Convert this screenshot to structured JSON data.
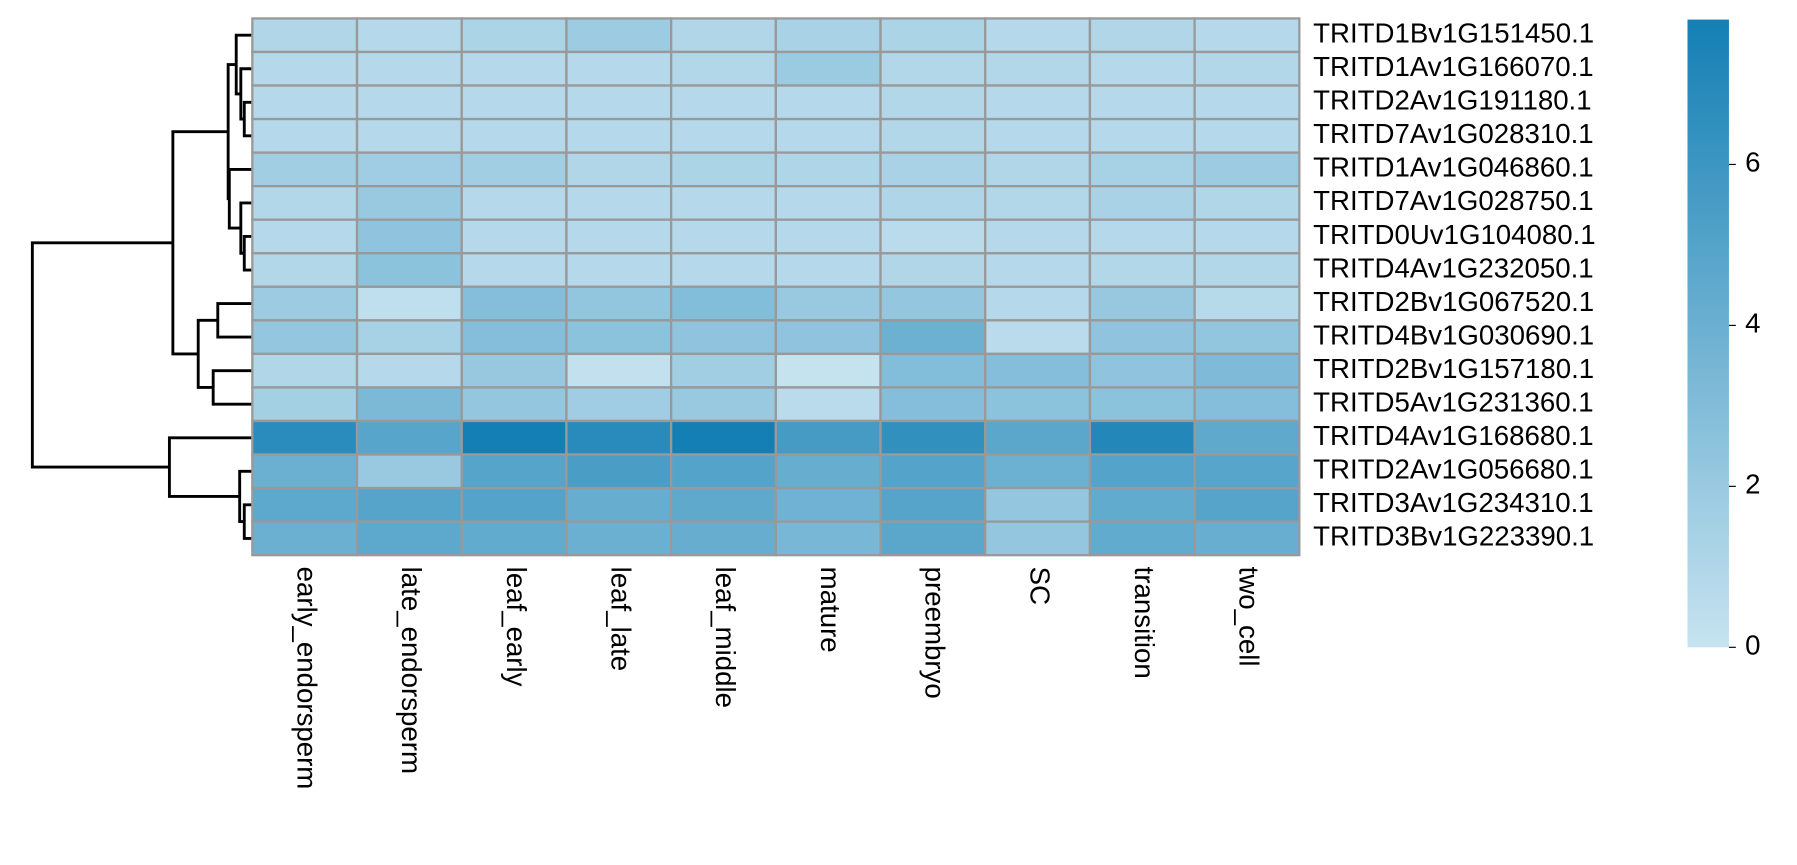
{
  "chart_data": {
    "type": "heatmap",
    "categories": [
      "early_endorsperm",
      "late_endorsperm",
      "leaf_early",
      "leaf_late",
      "leaf_middle",
      "mature",
      "preembryo",
      "SC",
      "transition",
      "two_cell"
    ],
    "rows": [
      "TRITD1Bv1G151450.1",
      "TRITD1Av1G166070.1",
      "TRITD2Av1G191180.1",
      "TRITD7Av1G028310.1",
      "TRITD1Av1G046860.1",
      "TRITD7Av1G028750.1",
      "TRITD0Uv1G104080.1",
      "TRITD4Av1G232050.1",
      "TRITD2Bv1G067520.1",
      "TRITD4Bv1G030690.1",
      "TRITD2Bv1G157180.1",
      "TRITD5Av1G231360.1",
      "TRITD4Av1G168680.1",
      "TRITD2Av1G056680.1",
      "TRITD3Av1G234310.1",
      "TRITD3Bv1G223390.1"
    ],
    "values": [
      [
        1.0,
        0.8,
        1.2,
        1.8,
        1.0,
        1.3,
        1.2,
        0.8,
        1.0,
        0.8
      ],
      [
        0.8,
        0.8,
        0.8,
        0.8,
        0.9,
        1.9,
        0.9,
        0.9,
        0.8,
        0.9
      ],
      [
        0.8,
        0.8,
        0.8,
        0.8,
        0.8,
        0.8,
        0.9,
        0.8,
        0.8,
        0.8
      ],
      [
        0.8,
        0.8,
        0.8,
        0.8,
        0.8,
        0.8,
        0.9,
        0.8,
        0.8,
        0.8
      ],
      [
        1.6,
        1.7,
        1.6,
        1.0,
        1.2,
        1.1,
        1.3,
        1.0,
        1.4,
        1.8
      ],
      [
        0.9,
        2.0,
        0.8,
        0.8,
        0.8,
        0.8,
        1.1,
        0.9,
        1.3,
        1.0
      ],
      [
        0.8,
        2.4,
        0.8,
        0.8,
        0.8,
        0.8,
        0.6,
        0.8,
        0.8,
        0.8
      ],
      [
        0.9,
        2.6,
        0.8,
        0.8,
        0.8,
        0.8,
        1.0,
        0.8,
        0.9,
        0.9
      ],
      [
        1.8,
        0.3,
        2.9,
        2.3,
        3.0,
        2.0,
        2.2,
        0.8,
        2.1,
        0.7
      ],
      [
        2.2,
        1.4,
        2.9,
        2.6,
        2.4,
        2.4,
        3.9,
        0.6,
        2.4,
        2.3
      ],
      [
        1.0,
        0.8,
        2.1,
        0.2,
        1.6,
        0.1,
        3.0,
        2.9,
        2.4,
        3.1
      ],
      [
        1.5,
        3.3,
        2.2,
        1.7,
        2.0,
        0.6,
        2.9,
        2.6,
        2.6,
        2.9
      ],
      [
        6.8,
        4.8,
        7.8,
        6.9,
        7.8,
        5.6,
        6.5,
        4.7,
        7.1,
        4.5
      ],
      [
        4.0,
        2.0,
        4.9,
        5.4,
        5.0,
        4.2,
        5.0,
        3.9,
        5.0,
        4.8
      ],
      [
        4.6,
        4.9,
        5.0,
        4.2,
        4.5,
        3.8,
        4.9,
        2.2,
        4.4,
        4.9
      ],
      [
        4.0,
        4.6,
        4.4,
        4.0,
        4.2,
        3.4,
        4.7,
        2.2,
        4.4,
        4.1
      ]
    ],
    "zlim": [
      0,
      7.8
    ],
    "zticks": [
      0,
      2,
      4,
      6
    ],
    "colorscale": [
      "#c7e3f0",
      "#137fb4"
    ],
    "border_color": "#999999"
  }
}
